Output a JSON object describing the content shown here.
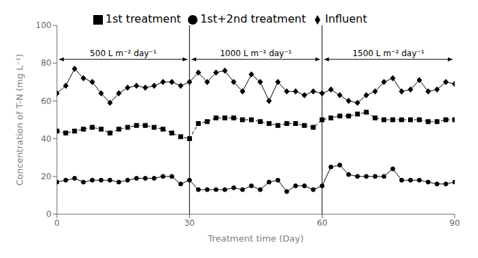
{
  "chart_data": {
    "type": "line",
    "xlabel": "Treatment time (Day)",
    "ylabel": "Concentration of T-N (mg L⁻¹)",
    "x": [
      0,
      2,
      4,
      6,
      8,
      10,
      12,
      14,
      16,
      18,
      20,
      22,
      24,
      26,
      28,
      30,
      32,
      34,
      36,
      38,
      40,
      42,
      44,
      46,
      48,
      50,
      52,
      54,
      56,
      58,
      60,
      62,
      64,
      66,
      68,
      70,
      72,
      74,
      76,
      78,
      80,
      82,
      84,
      86,
      88,
      90
    ],
    "series": [
      {
        "name": "Influent",
        "color": "black",
        "marker": "diamond",
        "line_style": "solid",
        "values": [
          64,
          68,
          77,
          72,
          70,
          64,
          59,
          64,
          67,
          68,
          67,
          68,
          70,
          70,
          68,
          70,
          75,
          70,
          75,
          76,
          70,
          65,
          74,
          70,
          60,
          70,
          65,
          65,
          63,
          65,
          64,
          66,
          63,
          60,
          59,
          63,
          65,
          70,
          72,
          65,
          66,
          71,
          65,
          66,
          70,
          69
        ]
      },
      {
        "name": "1st treatment",
        "color": "black",
        "marker": "square",
        "line_style": "dashed",
        "values": [
          44,
          43,
          44,
          45,
          46,
          45,
          43,
          45,
          46,
          47,
          47,
          46,
          45,
          43,
          41,
          40,
          48,
          49,
          51,
          51,
          51,
          50,
          50,
          49,
          48,
          47,
          48,
          48,
          47,
          46,
          50,
          51,
          52,
          52,
          53,
          54,
          51,
          50,
          50,
          50,
          50,
          50,
          49,
          49,
          50,
          50
        ]
      },
      {
        "name": "1st+2nd treatment",
        "color": "black",
        "marker": "circle",
        "line_style": "solid",
        "values": [
          17,
          18,
          19,
          17,
          18,
          18,
          18,
          17,
          18,
          19,
          19,
          19,
          20,
          20,
          16,
          18,
          13,
          13,
          13,
          13,
          14,
          13,
          15,
          13,
          17,
          18,
          12,
          15,
          15,
          13,
          15,
          25,
          26,
          21,
          20,
          20,
          20,
          20,
          24,
          18,
          18,
          18,
          17,
          16,
          16,
          17
        ]
      }
    ],
    "vlines": [
      30,
      60
    ],
    "vline_color": "black",
    "annotations": [
      {
        "text": "500 L m⁻² day⁻¹",
        "x": [
          0,
          30
        ],
        "y": 82
      },
      {
        "text": "1000 L m⁻² day⁻¹",
        "x": [
          30,
          60
        ],
        "y": 82
      },
      {
        "text": "1500 L m⁻² day⁻¹",
        "x": [
          60,
          90
        ],
        "y": 82
      }
    ],
    "xlim": [
      0,
      90
    ],
    "ylim": [
      0,
      100
    ],
    "xticks": [
      0,
      30,
      60,
      90
    ],
    "yticks": [
      0,
      20,
      40,
      60,
      80,
      100
    ],
    "grid": false,
    "legend": "top"
  }
}
